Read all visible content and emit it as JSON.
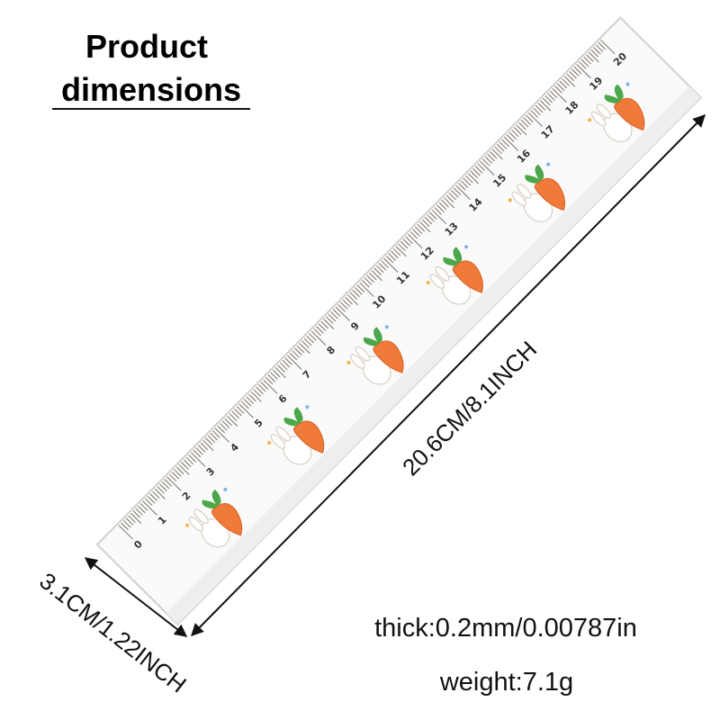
{
  "header": {
    "title_line1": "Product",
    "title_line2": "dimensions"
  },
  "ruler": {
    "labels": [
      0,
      1,
      2,
      3,
      4,
      5,
      6,
      7,
      8,
      9,
      10,
      11,
      12,
      13,
      14,
      15,
      16,
      17,
      18,
      19,
      20
    ]
  },
  "dimensions": {
    "length": "20.6CM/8.1INCH",
    "width": "3.1CM/1.22INCH",
    "thickness": "thick:0.2mm/0.00787in",
    "weight": "weight:7.1g"
  }
}
